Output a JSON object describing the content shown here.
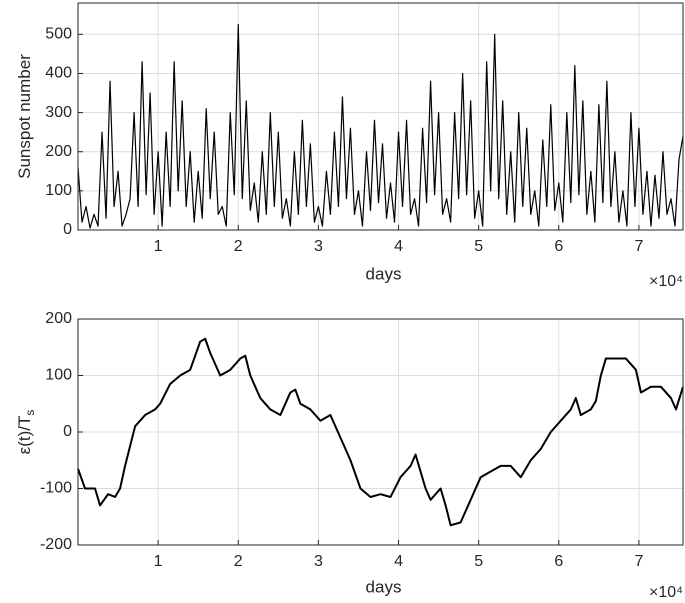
{
  "chart_data": [
    {
      "type": "line",
      "ylabel": "Sunspot number",
      "xlabel": "days",
      "x_exponent_label": "×10⁴",
      "color": "#000000",
      "grid": true,
      "xlim": [
        0,
        75500
      ],
      "ylim": [
        0,
        580
      ],
      "xticks": [
        {
          "value": 10000,
          "label": "1"
        },
        {
          "value": 20000,
          "label": "2"
        },
        {
          "value": 30000,
          "label": "3"
        },
        {
          "value": 40000,
          "label": "4"
        },
        {
          "value": 50000,
          "label": "5"
        },
        {
          "value": 60000,
          "label": "6"
        },
        {
          "value": 70000,
          "label": "7"
        }
      ],
      "yticks": [
        0,
        100,
        200,
        300,
        400,
        500
      ],
      "x": [
        0,
        500,
        1000,
        1500,
        2000,
        2500,
        3000,
        3500,
        4000,
        4500,
        5000,
        5500,
        6000,
        6500,
        7000,
        7500,
        8000,
        8500,
        9000,
        9500,
        10000,
        10500,
        11000,
        11500,
        12000,
        12500,
        13000,
        13500,
        14000,
        14500,
        15000,
        15500,
        16000,
        16500,
        17000,
        17500,
        18000,
        18500,
        19000,
        19500,
        20000,
        20500,
        21000,
        21500,
        22000,
        22500,
        23000,
        23500,
        24000,
        24500,
        25000,
        25500,
        26000,
        26500,
        27000,
        27500,
        28000,
        28500,
        29000,
        29500,
        30000,
        30500,
        31000,
        31500,
        32000,
        32500,
        33000,
        33500,
        34000,
        34500,
        35000,
        35500,
        36000,
        36500,
        37000,
        37500,
        38000,
        38500,
        39000,
        39500,
        40000,
        40500,
        41000,
        41500,
        42000,
        42500,
        43000,
        43500,
        44000,
        44500,
        45000,
        45500,
        46000,
        46500,
        47000,
        47500,
        48000,
        48500,
        49000,
        49500,
        50000,
        50500,
        51000,
        51500,
        52000,
        52500,
        53000,
        53500,
        54000,
        54500,
        55000,
        55500,
        56000,
        56500,
        57000,
        57500,
        58000,
        58500,
        59000,
        59500,
        60000,
        60500,
        61000,
        61500,
        62000,
        62500,
        63000,
        63500,
        64000,
        64500,
        65000,
        65500,
        66000,
        66500,
        67000,
        67500,
        68000,
        68500,
        69000,
        69500,
        70000,
        70500,
        71000,
        71500,
        72000,
        72500,
        73000,
        73500,
        74000,
        74500,
        75000,
        75500
      ],
      "values": [
        160,
        20,
        60,
        5,
        40,
        10,
        250,
        30,
        380,
        60,
        150,
        10,
        40,
        80,
        300,
        60,
        430,
        90,
        350,
        40,
        200,
        10,
        250,
        60,
        430,
        100,
        330,
        60,
        200,
        20,
        150,
        30,
        310,
        80,
        250,
        40,
        60,
        10,
        300,
        90,
        525,
        80,
        330,
        50,
        120,
        20,
        200,
        40,
        300,
        60,
        250,
        30,
        80,
        10,
        200,
        40,
        280,
        60,
        220,
        20,
        60,
        10,
        150,
        40,
        250,
        60,
        340,
        80,
        260,
        40,
        100,
        10,
        200,
        50,
        280,
        70,
        220,
        30,
        120,
        20,
        250,
        60,
        280,
        40,
        80,
        10,
        260,
        70,
        380,
        90,
        300,
        40,
        80,
        20,
        300,
        80,
        400,
        90,
        330,
        30,
        100,
        10,
        430,
        100,
        500,
        80,
        330,
        40,
        200,
        20,
        300,
        60,
        260,
        40,
        100,
        10,
        230,
        60,
        320,
        50,
        120,
        20,
        300,
        70,
        420,
        90,
        330,
        40,
        150,
        20,
        320,
        70,
        380,
        60,
        200,
        20,
        100,
        10,
        300,
        60,
        260,
        40,
        150,
        10,
        140,
        30,
        200,
        40,
        80,
        10,
        180,
        240
      ]
    },
    {
      "type": "line",
      "ylabel": "ε(t)/T",
      "ylabel_subscript": "s",
      "xlabel": "days",
      "x_exponent_label": "×10⁴",
      "color": "#000000",
      "grid": true,
      "xlim": [
        0,
        75500
      ],
      "ylim": [
        -200,
        200
      ],
      "xticks": [
        {
          "value": 10000,
          "label": "1"
        },
        {
          "value": 20000,
          "label": "2"
        },
        {
          "value": 30000,
          "label": "3"
        },
        {
          "value": 40000,
          "label": "4"
        },
        {
          "value": 50000,
          "label": "5"
        },
        {
          "value": 60000,
          "label": "6"
        },
        {
          "value": 70000,
          "label": "7"
        }
      ],
      "yticks": [
        -200,
        -100,
        0,
        100,
        200
      ],
      "x": [
        0,
        875,
        2125,
        2750,
        3750,
        4625,
        5250,
        5875,
        7125,
        8375,
        9625,
        10250,
        11500,
        12750,
        14000,
        15250,
        15875,
        16500,
        17750,
        19000,
        20250,
        20875,
        21500,
        22750,
        24000,
        25250,
        26500,
        27125,
        27750,
        29000,
        30250,
        31500,
        32750,
        34000,
        35250,
        36500,
        37750,
        39000,
        40250,
        41500,
        42125,
        42750,
        43375,
        44000,
        45250,
        45875,
        46500,
        47750,
        49000,
        50250,
        51500,
        52750,
        54000,
        55250,
        56500,
        57750,
        59000,
        60250,
        61500,
        62125,
        62750,
        64000,
        64625,
        65250,
        65875,
        67125,
        68375,
        69625,
        70250,
        71500,
        72750,
        74000,
        74625,
        75500
      ],
      "values": [
        -65,
        -100,
        -100,
        -130,
        -110,
        -115,
        -100,
        -60,
        10,
        30,
        40,
        50,
        85,
        100,
        110,
        160,
        165,
        140,
        100,
        110,
        130,
        135,
        100,
        60,
        40,
        30,
        70,
        75,
        50,
        40,
        20,
        30,
        -10,
        -50,
        -100,
        -115,
        -110,
        -115,
        -80,
        -60,
        -40,
        -70,
        -100,
        -120,
        -100,
        -130,
        -165,
        -160,
        -120,
        -80,
        -70,
        -60,
        -60,
        -80,
        -50,
        -30,
        0,
        20,
        40,
        60,
        30,
        40,
        55,
        100,
        130,
        130,
        130,
        110,
        70,
        80,
        80,
        60,
        40,
        80
      ]
    }
  ]
}
